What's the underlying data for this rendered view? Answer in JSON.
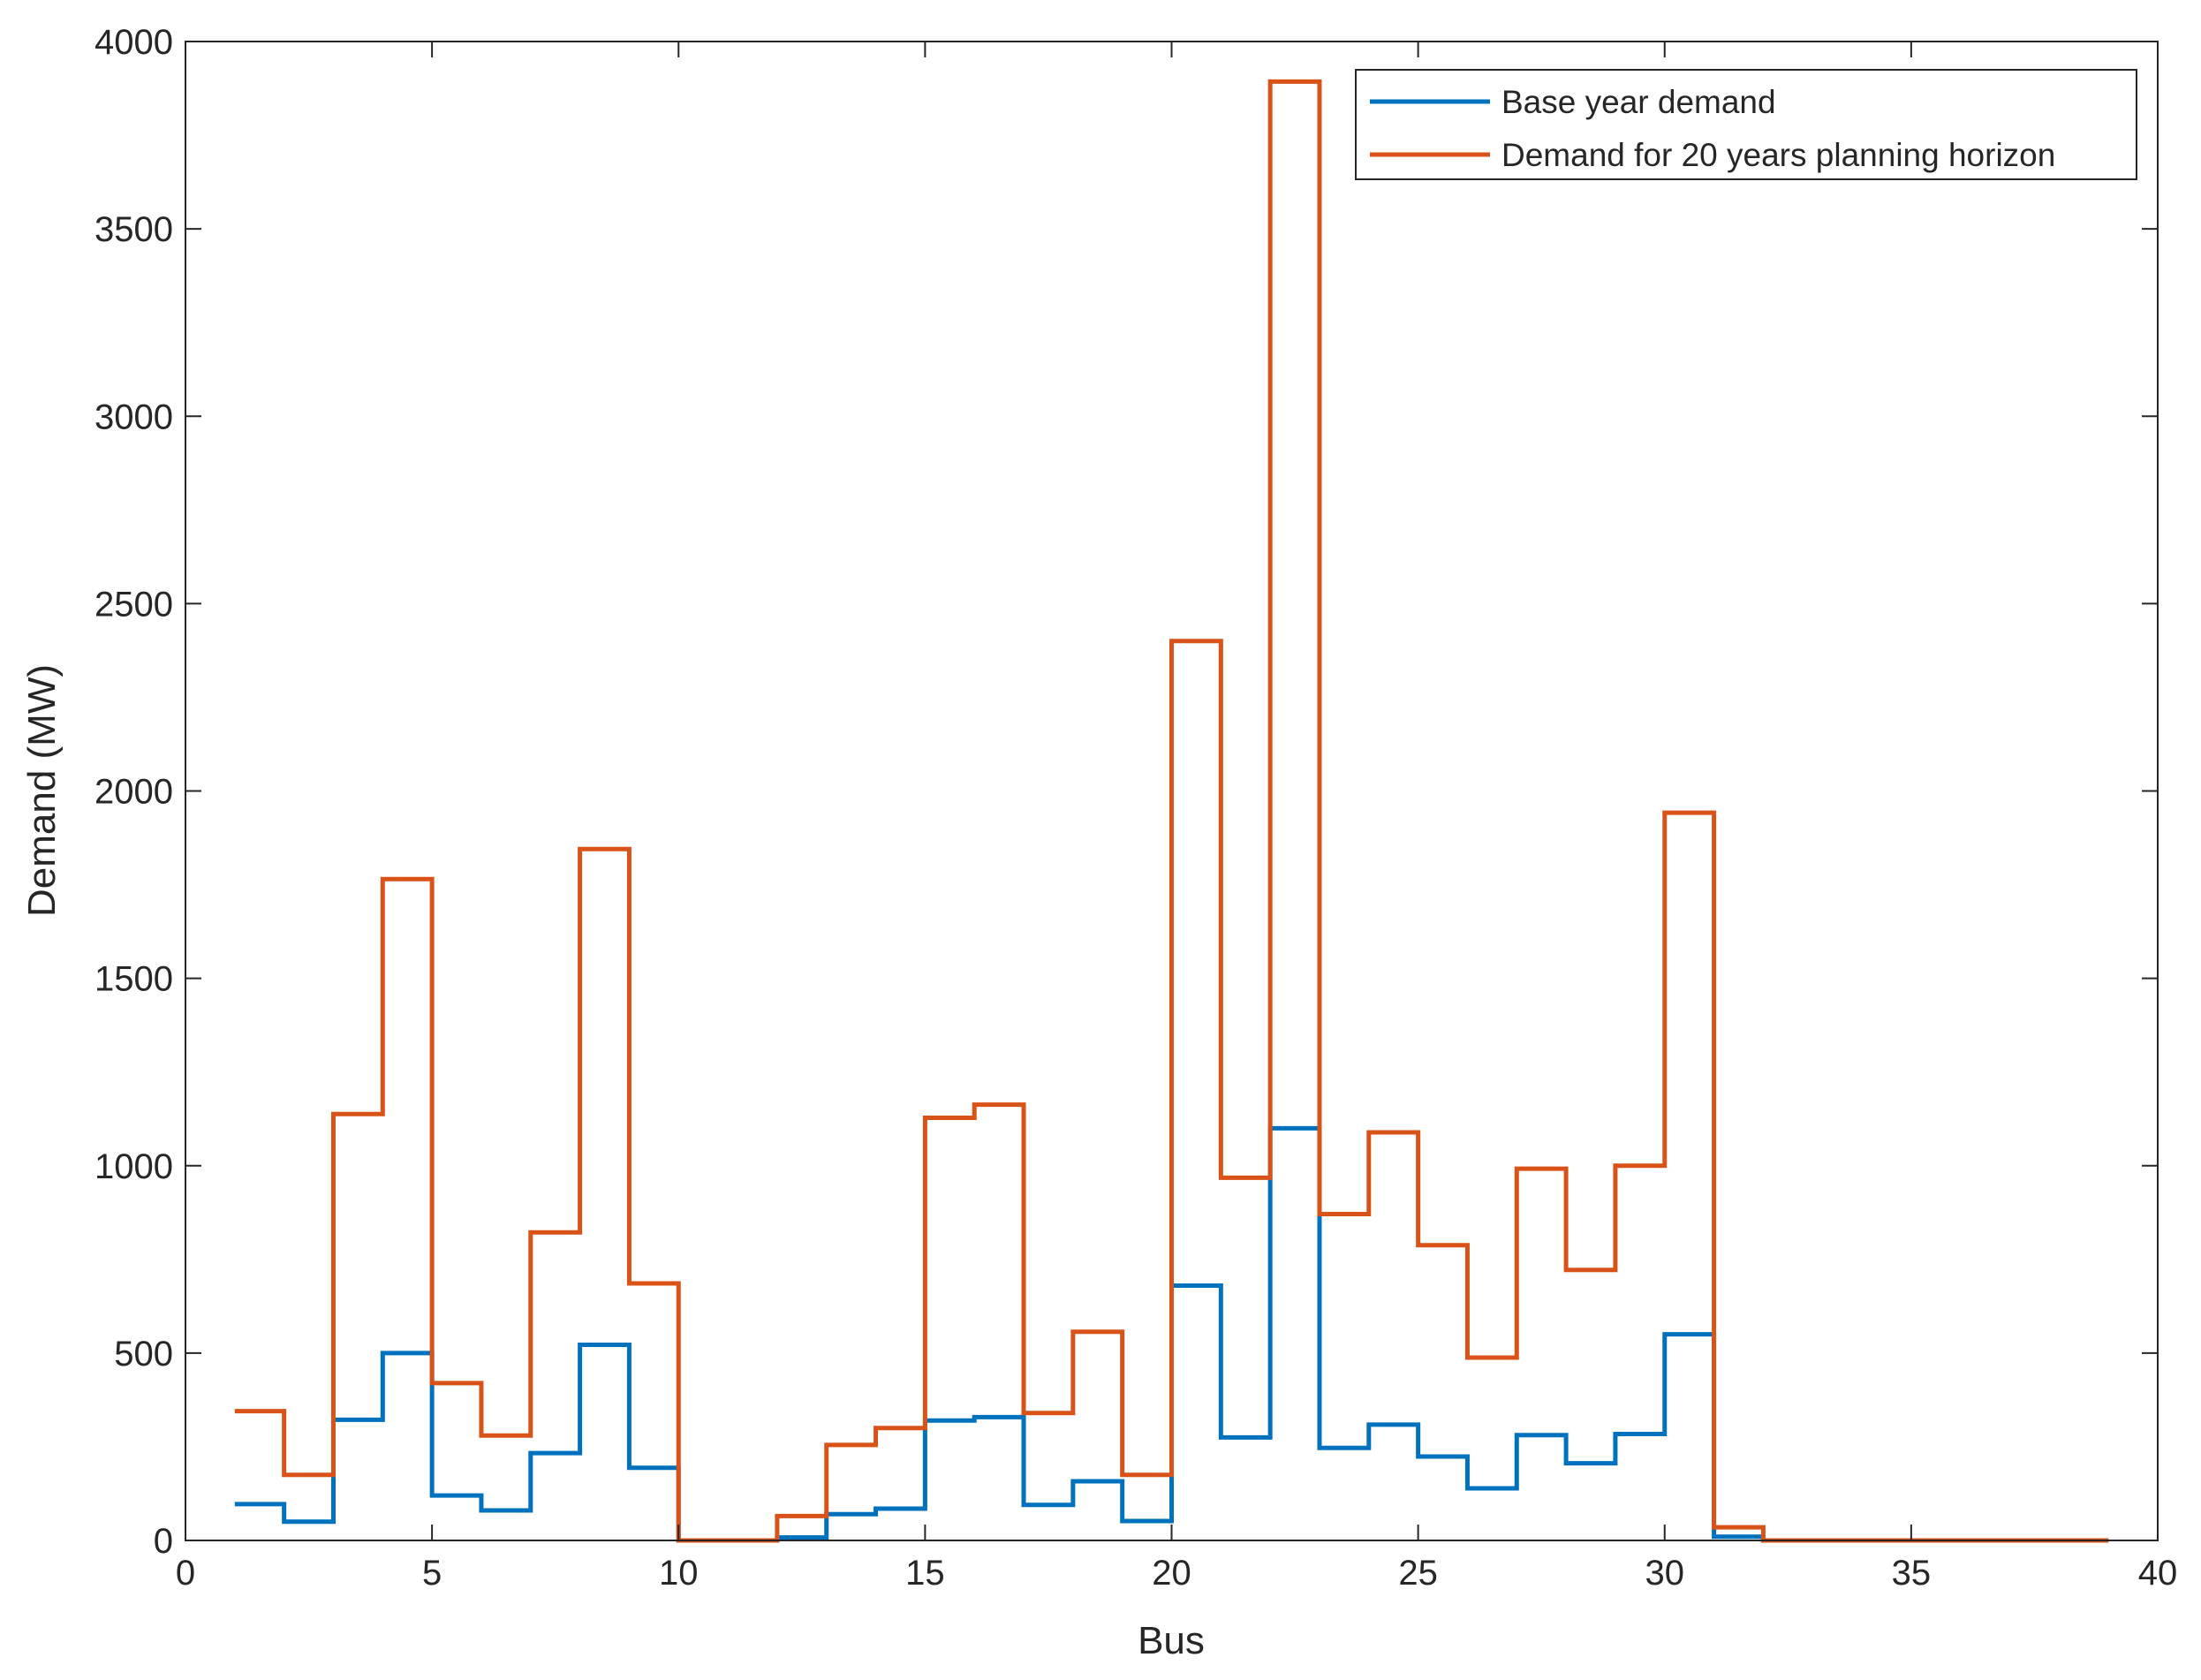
{
  "chart_data": {
    "type": "line",
    "style": "stairs",
    "xlabel": "Bus",
    "ylabel": "Demand (MW)",
    "xlim": [
      0,
      40
    ],
    "ylim": [
      0,
      4000
    ],
    "xticks": [
      0,
      5,
      10,
      15,
      20,
      25,
      30,
      35,
      40
    ],
    "yticks": [
      0,
      500,
      1000,
      1500,
      2000,
      2500,
      3000,
      3500,
      4000
    ],
    "grid": false,
    "legend_position": "top-right",
    "x": [
      1,
      2,
      3,
      4,
      5,
      6,
      7,
      8,
      9,
      10,
      11,
      12,
      13,
      14,
      15,
      16,
      17,
      18,
      19,
      20,
      21,
      22,
      23,
      24,
      25,
      26,
      27,
      28,
      29,
      30,
      31,
      32,
      33,
      34,
      35,
      36,
      37,
      38,
      39
    ],
    "x_end": 39,
    "series": [
      {
        "name": "Base year demand",
        "color": "#0072BD",
        "values": [
          97,
          50,
          322,
          500,
          120,
          80,
          233,
          522,
          194,
          0,
          0,
          8,
          70,
          85,
          320,
          329,
          95,
          158,
          52,
          680,
          275,
          1100,
          247,
          309,
          224,
          139,
          281,
          206,
          284,
          550,
          10,
          0,
          0,
          0,
          0,
          0,
          0,
          0,
          0
        ]
      },
      {
        "name": "Demand for 20 years planning horizon",
        "color": "#D95319",
        "values": [
          345,
          175,
          1138,
          1765,
          420,
          280,
          822,
          1845,
          686,
          0,
          0,
          65,
          255,
          300,
          1128,
          1163,
          340,
          557,
          175,
          2400,
          968,
          3893,
          871,
          1089,
          788,
          488,
          992,
          722,
          1000,
          1942,
          35,
          0,
          0,
          0,
          0,
          0,
          0,
          0,
          0
        ]
      }
    ]
  }
}
